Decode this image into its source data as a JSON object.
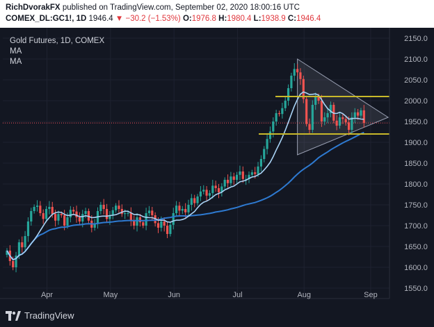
{
  "header": {
    "author": "RichDvorakFX",
    "published_text": "published on TradingView.com, September 02, 2020 18:00:16 UTC",
    "symbol": "COMEX_DL:GC1!, 1D",
    "last": "1946.4",
    "change": "−30.2 (−1.53%)",
    "o_label": "O:",
    "o_value": "1976.8",
    "h_label": "H:",
    "h_value": "1980.4",
    "l_label": "L:",
    "l_value": "1938.9",
    "c_label": "C:",
    "c_value": "1946.4"
  },
  "legend": {
    "title": "Gold Futures, 1D, COMEX",
    "ma1": "MA",
    "ma2": "MA"
  },
  "footer": {
    "brand": "TradingView"
  },
  "colors": {
    "background": "#131722",
    "up": "#26a69a",
    "down": "#ef5350",
    "ma_fast": "#a9d3f5",
    "ma_slow": "#2e7ad1",
    "level": "#c9b92a",
    "label": "#f5e51b",
    "price_tag": "#f7525f"
  },
  "chart_data": {
    "type": "candlestick",
    "title": "Gold Futures, 1D, COMEX",
    "y_ticks": [
      1550,
      1600,
      1650,
      1700,
      1750,
      1800,
      1850,
      1900,
      1950,
      2000,
      2050,
      2100,
      2150
    ],
    "y_tick_labels": [
      "1550.0",
      "1600.0",
      "1650.0",
      "1700.0",
      "1750.0",
      "1800.0",
      "1850.0",
      "1900.0",
      "1950.0",
      "2000.0",
      "2050.0",
      "2100.0",
      "2150.0"
    ],
    "ylim": [
      1525,
      2175
    ],
    "x_ticks": [
      "Apr",
      "May",
      "Jun",
      "Jul",
      "Aug",
      "Sep"
    ],
    "x_tick_days": [
      10,
      31,
      52,
      73,
      95,
      117
    ],
    "levels": [
      {
        "name": "resistance",
        "value": 2010,
        "label": "2010.0"
      },
      {
        "name": "support",
        "value": 1920,
        "label": "1920.0"
      }
    ],
    "last_price": {
      "value": 1946.4,
      "label": "1946.4"
    },
    "triangle": [
      [
        96,
        2100
      ],
      [
        96,
        1870
      ],
      [
        126,
        1960
      ]
    ],
    "closes": [
      1640,
      1615,
      1600,
      1628,
      1660,
      1648,
      1675,
      1710,
      1735,
      1745,
      1748,
      1730,
      1716,
      1740,
      1745,
      1728,
      1712,
      1728,
      1725,
      1700,
      1720,
      1738,
      1734,
      1720,
      1710,
      1728,
      1735,
      1712,
      1695,
      1705,
      1735,
      1750,
      1740,
      1716,
      1725,
      1737,
      1748,
      1740,
      1728,
      1730,
      1730,
      1712,
      1700,
      1720,
      1708,
      1700,
      1730,
      1736,
      1725,
      1706,
      1695,
      1710,
      1700,
      1680,
      1702,
      1730,
      1748,
      1736,
      1740,
      1732,
      1750,
      1766,
      1754,
      1770,
      1782,
      1786,
      1772,
      1778,
      1796,
      1790,
      1780,
      1794,
      1810,
      1802,
      1818,
      1810,
      1822,
      1830,
      1812,
      1812,
      1822,
      1828,
      1824,
      1842,
      1860,
      1884,
      1908,
      1926,
      1950,
      1970,
      1968,
      1982,
      2000,
      2030,
      2060,
      2076,
      2068,
      2052,
      2004,
      1944,
      1930,
      1990,
      2010,
      2000,
      1950,
      1960,
      1970,
      1990,
      1952,
      1940,
      1960,
      1956,
      1948,
      1930,
      1960,
      1972,
      1964,
      1976.8,
      1946.4
    ]
  }
}
